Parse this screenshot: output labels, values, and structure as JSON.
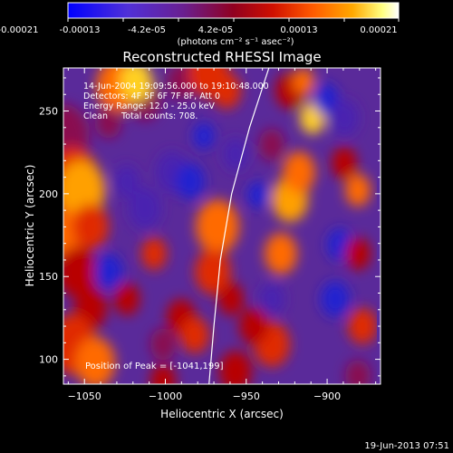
{
  "colorbar": {
    "tick_labels": [
      "-0.00021",
      "-0.00013",
      "-4.2e-05",
      "4.2e-05",
      "0.00013",
      "0.00021"
    ],
    "unit_label": "(photons cm⁻² s⁻¹ asec⁻²)",
    "range": [
      -0.00021,
      0.00021
    ],
    "colormap": [
      "#0000ff",
      "#6a38c8",
      "#7a1060",
      "#c00000",
      "#ff4000",
      "#ff9a00",
      "#ffff80",
      "#ffffff"
    ]
  },
  "chart_data": {
    "type": "heatmap",
    "title": "Reconstructed RHESSI Image",
    "xlabel": "Heliocentric X (arcsec)",
    "ylabel": "Heliocentric Y (arcsec)",
    "xlim": [
      -1063,
      -867
    ],
    "ylim": [
      85,
      276
    ],
    "xticks": [
      -1050,
      -1000,
      -950,
      -900
    ],
    "xtick_labels": [
      "−1050",
      "−1000",
      "−950",
      "−900"
    ],
    "yticks": [
      100,
      150,
      200,
      250
    ],
    "ytick_labels": [
      "100",
      "150",
      "200",
      "250"
    ],
    "limb_curve": [
      [
        -973,
        85
      ],
      [
        -970,
        120
      ],
      [
        -966,
        160
      ],
      [
        -959,
        200
      ],
      [
        -948,
        240
      ],
      [
        -936,
        276
      ]
    ],
    "annotations": [
      "14-Jun-2004 19:09:56.000 to 19:10:48.000",
      "Detectors: 4F 5F 6F 7F 8F, Att 0",
      "Energy Range: 12.0 - 25.0 keV",
      "Clean     Total counts: 708."
    ],
    "peak_label": "Position of Peak = [-1041,199]",
    "peak": [
      -1041,
      199
    ]
  },
  "timestamp": "19-Jun-2013 07:51"
}
